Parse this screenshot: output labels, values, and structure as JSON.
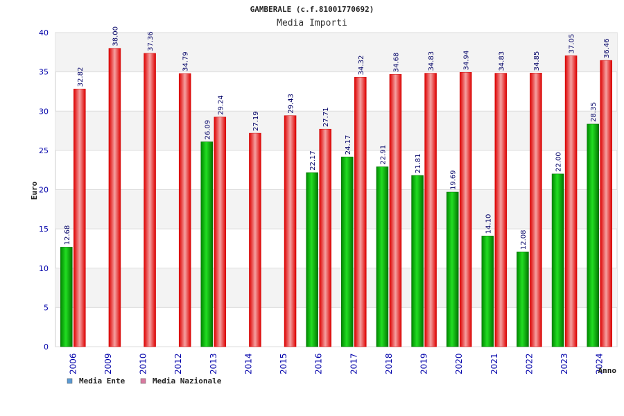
{
  "chart_data": {
    "type": "bar",
    "title": "GAMBERALE (c.f.81001770692)",
    "subtitle": "Media Importi",
    "xlabel": "Anno",
    "ylabel": "Euro",
    "ylim": [
      0,
      40
    ],
    "yticks": [
      0,
      5,
      10,
      15,
      20,
      25,
      30,
      35,
      40
    ],
    "categories": [
      "2006",
      "2009",
      "2010",
      "2012",
      "2013",
      "2014",
      "2015",
      "2016",
      "2017",
      "2018",
      "2019",
      "2020",
      "2021",
      "2022",
      "2023",
      "2024"
    ],
    "series": [
      {
        "name": "Media Ente",
        "color": "#00bb00",
        "values": [
          12.68,
          null,
          null,
          null,
          26.09,
          null,
          null,
          22.17,
          24.17,
          22.91,
          21.81,
          19.69,
          14.1,
          12.08,
          22.0,
          28.35
        ],
        "labels": [
          "12.68",
          "",
          "",
          "",
          "26.09",
          "",
          "",
          "22.17",
          "24.17",
          "22.91",
          "21.81",
          "19.69",
          "14.10",
          "12.08",
          "22.00",
          "28.35"
        ]
      },
      {
        "name": "Media Nazionale",
        "color": "#ee0000",
        "values": [
          32.82,
          38.0,
          37.36,
          34.79,
          29.24,
          27.19,
          29.43,
          27.71,
          34.32,
          34.68,
          34.83,
          34.94,
          34.83,
          34.85,
          37.05,
          36.46
        ],
        "labels": [
          "32.82",
          "38.00",
          "37.36",
          "34.79",
          "29.24",
          "27.19",
          "29.43",
          "27.71",
          "34.32",
          "34.68",
          "34.83",
          "34.94",
          "34.83",
          "34.85",
          "37.05",
          "36.46"
        ]
      }
    ],
    "legend": [
      {
        "label": "Media Ente",
        "color": "#5b9bd5"
      },
      {
        "label": "Media Nazionale",
        "color": "#d97aa0"
      }
    ],
    "grid": true,
    "legend_position": "bottom-left"
  }
}
